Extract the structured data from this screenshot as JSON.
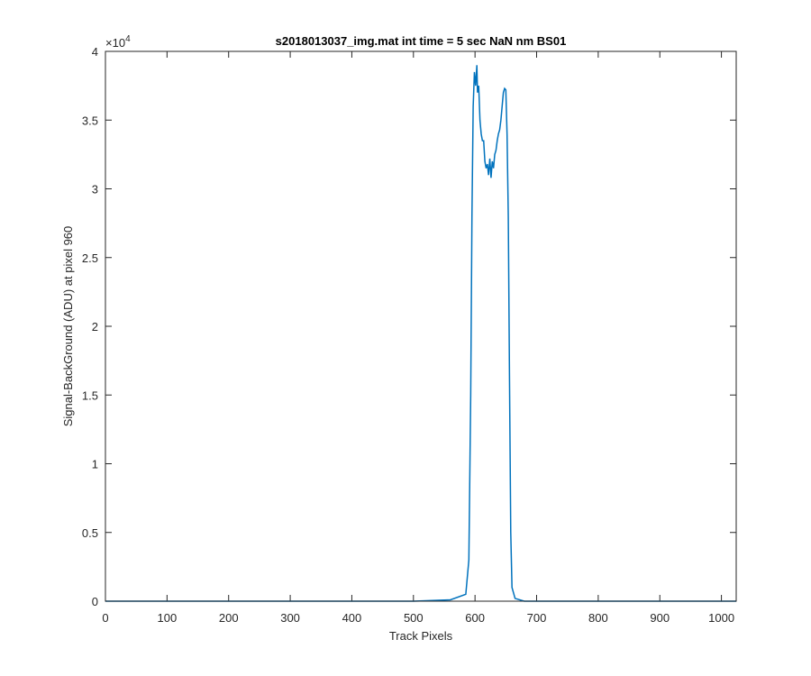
{
  "chart_data": {
    "type": "line",
    "title": "s2018013037_img.mat int time = 5 sec  NaN nm BS01",
    "xlabel": "Track Pixels",
    "ylabel": "Signal-BackGround (ADU) at pixel 960",
    "xlim": [
      0,
      1024
    ],
    "ylim": [
      0,
      40000
    ],
    "x_ticks": [
      0,
      100,
      200,
      300,
      400,
      500,
      600,
      700,
      800,
      900,
      1000
    ],
    "y_ticks": [
      0,
      5000,
      10000,
      15000,
      20000,
      25000,
      30000,
      35000,
      40000
    ],
    "y_tick_labels": [
      "0",
      "0.5",
      "1",
      "1.5",
      "2",
      "2.5",
      "3",
      "3.5",
      "4"
    ],
    "y_exponent_base": "×10",
    "y_exponent_power": "4",
    "grid": false,
    "line_color": "#0072bd",
    "series": [
      {
        "x": [
          0,
          100,
          200,
          300,
          400,
          500,
          560,
          585,
          590,
          593,
          595,
          597,
          599,
          601,
          603,
          604,
          606,
          608,
          610,
          612,
          614,
          616,
          618,
          620,
          622,
          624,
          626,
          628,
          630,
          632,
          634,
          636,
          638,
          640,
          642,
          644,
          646,
          648,
          650,
          652,
          654,
          656,
          658,
          660,
          665,
          680,
          700,
          800,
          900,
          1024
        ],
        "y": [
          0,
          0,
          0,
          0,
          0,
          0,
          100,
          500,
          3000,
          15000,
          28000,
          36000,
          38500,
          37500,
          39000,
          37000,
          37500,
          35000,
          34000,
          33500,
          33500,
          32000,
          31500,
          31800,
          31000,
          32200,
          30800,
          32000,
          31500,
          32500,
          32800,
          33500,
          34000,
          34300,
          35000,
          36000,
          37000,
          37300,
          37200,
          34000,
          28000,
          16000,
          5000,
          1000,
          200,
          0,
          0,
          0,
          0,
          0
        ]
      }
    ]
  }
}
